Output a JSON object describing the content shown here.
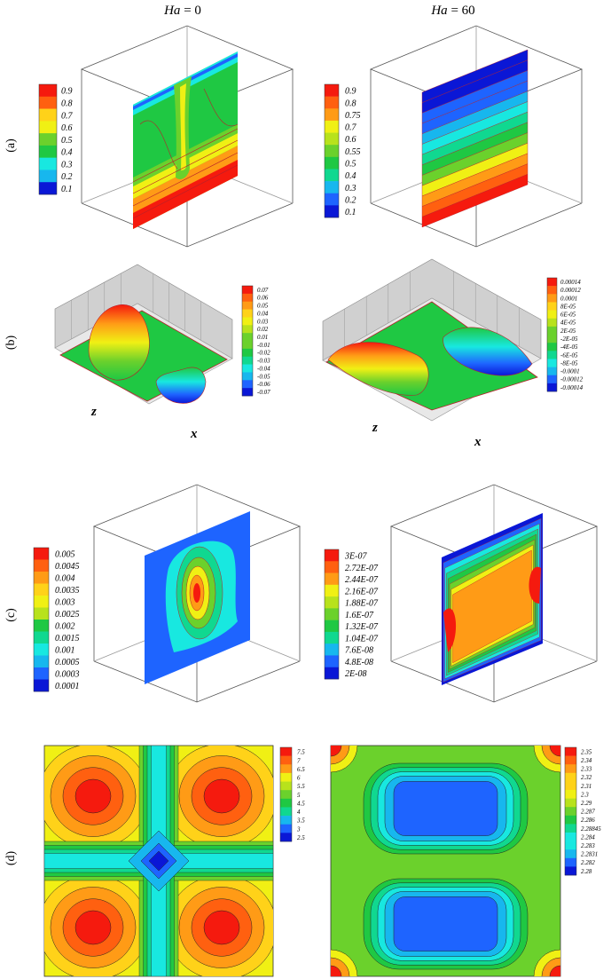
{
  "figure": {
    "headers": {
      "left": {
        "italic": "Ha",
        "rest": " = 0"
      },
      "right": {
        "italic": "Ha",
        "rest": " = 60"
      }
    },
    "row_labels": [
      "(a)",
      "(b)",
      "(c)",
      "(d)"
    ],
    "axis_letters": {
      "z": "z",
      "x": "x"
    },
    "colorbars": {
      "a_left": [
        "0.9",
        "0.8",
        "0.7",
        "0.6",
        "0.5",
        "0.4",
        "0.3",
        "0.2",
        "0.1"
      ],
      "a_right": [
        "0.9",
        "0.8",
        "0.75",
        "0.7",
        "0.6",
        "0.55",
        "0.5",
        "0.4",
        "0.3",
        "0.2",
        "0.1"
      ],
      "b_left": [
        "0.07",
        "0.06",
        "0.05",
        "0.04",
        "0.03",
        "0.02",
        "0.01",
        "-0.01",
        "-0.02",
        "-0.03",
        "-0.04",
        "-0.05",
        "-0.06",
        "-0.07"
      ],
      "b_right": [
        "0.00014",
        "0.00012",
        "0.0001",
        "8E-05",
        "6E-05",
        "4E-05",
        "2E-05",
        "-2E-05",
        "-4E-05",
        "-6E-05",
        "-8E-05",
        "-0.0001",
        "-0.00012",
        "-0.00014"
      ],
      "c_left": [
        "0.005",
        "0.0045",
        "0.004",
        "0.0035",
        "0.003",
        "0.0025",
        "0.002",
        "0.0015",
        "0.001",
        "0.0005",
        "0.0003",
        "0.0001"
      ],
      "c_right": [
        "3E-07",
        "2.72E-07",
        "2.44E-07",
        "2.16E-07",
        "1.88E-07",
        "1.6E-07",
        "1.32E-07",
        "1.04E-07",
        "7.6E-08",
        "4.8E-08",
        "2E-08"
      ],
      "d_left": [
        "7.5",
        "7",
        "6.5",
        "6",
        "5.5",
        "5",
        "4.5",
        "4",
        "3.5",
        "3",
        "2.5"
      ],
      "d_right": [
        "2.35",
        "2.34",
        "2.33",
        "2.32",
        "2.31",
        "2.3",
        "2.29",
        "2.287",
        "2.286",
        "2.28845",
        "2.284",
        "2.283",
        "2.2831",
        "2.282",
        "2.28"
      ]
    },
    "palette": [
      "#0a17d6",
      "#1e64ff",
      "#17b7ee",
      "#18e8e0",
      "#10d890",
      "#1fc843",
      "#6bd12c",
      "#b8e21c",
      "#f0f014",
      "#ffd219",
      "#ff9b16",
      "#ff6010",
      "#f51a0e"
    ]
  }
}
